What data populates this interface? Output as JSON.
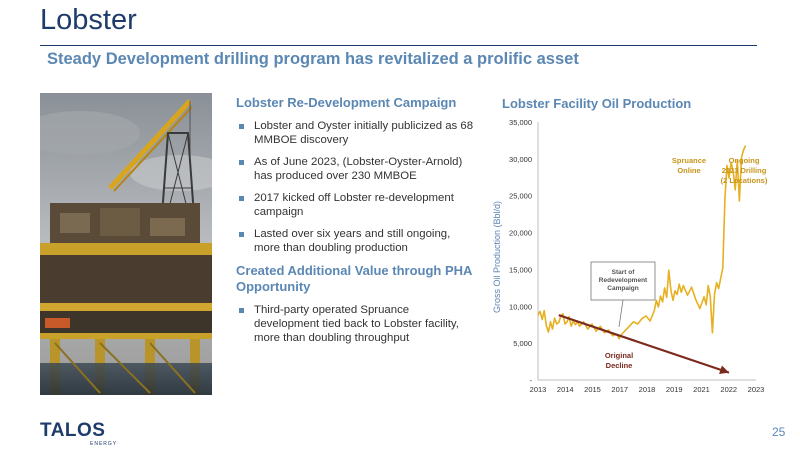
{
  "slide": {
    "title": "Lobster",
    "subtitle": "Steady Development drilling program has revitalized a prolific asset",
    "page_number": "25"
  },
  "left_column": {
    "heading1": "Lobster Re-Development Campaign",
    "bullets1": [
      "Lobster and Oyster initially publicized as 68 MMBOE discovery",
      "As of June 2023, (Lobster-Oyster-Arnold) has produced over 230 MMBOE",
      "2017 kicked off Lobster re-development campaign",
      "Lasted over six years and still ongoing, more than doubling production"
    ],
    "heading2": "Created Additional Value through PHA Opportunity",
    "bullets2": [
      "Third-party operated Spruance development tied back to Lobster facility, more than doubling throughput"
    ]
  },
  "logo": {
    "text": "TALOS",
    "subtext": "ENERGY"
  },
  "chart_title": "Lobster Facility Oil Production",
  "chart_data": {
    "type": "line",
    "ylabel": "Gross Oil Production (Bbl/d)",
    "ylim": [
      0,
      35000
    ],
    "y_ticks": [
      "-",
      "5,000",
      "10,000",
      "15,000",
      "20,000",
      "25,000",
      "30,000",
      "35,000"
    ],
    "x_ticks": [
      "2013",
      "2014",
      "2015",
      "2017",
      "2018",
      "2019",
      "2021",
      "2022",
      "2023"
    ],
    "series": [
      {
        "color": "#e6b020",
        "points": [
          [
            2013.0,
            8800
          ],
          [
            2013.1,
            9300
          ],
          [
            2013.2,
            8200
          ],
          [
            2013.3,
            9400
          ],
          [
            2013.4,
            7400
          ],
          [
            2013.5,
            6500
          ],
          [
            2013.6,
            7900
          ],
          [
            2013.7,
            6900
          ],
          [
            2013.8,
            8400
          ],
          [
            2013.9,
            7600
          ],
          [
            2014.0,
            7800
          ],
          [
            2014.1,
            8700
          ],
          [
            2014.2,
            9000
          ],
          [
            2014.3,
            7600
          ],
          [
            2014.4,
            7900
          ],
          [
            2014.5,
            8600
          ],
          [
            2014.6,
            7300
          ],
          [
            2014.7,
            8000
          ],
          [
            2014.8,
            7500
          ],
          [
            2014.9,
            7900
          ],
          [
            2015.0,
            7300
          ],
          [
            2015.2,
            7900
          ],
          [
            2015.4,
            6900
          ],
          [
            2015.6,
            7600
          ],
          [
            2015.8,
            6600
          ],
          [
            2016.0,
            7300
          ],
          [
            2016.2,
            6400
          ],
          [
            2016.4,
            6800
          ],
          [
            2016.6,
            6000
          ],
          [
            2016.8,
            6200
          ],
          [
            2016.9,
            5600
          ],
          [
            2017.0,
            6100
          ],
          [
            2017.2,
            6700
          ],
          [
            2017.4,
            7300
          ],
          [
            2017.6,
            7900
          ],
          [
            2017.8,
            7600
          ],
          [
            2018.0,
            8300
          ],
          [
            2018.2,
            8700
          ],
          [
            2018.4,
            8000
          ],
          [
            2018.6,
            9400
          ],
          [
            2018.7,
            10800
          ],
          [
            2018.8,
            9900
          ],
          [
            2018.9,
            11400
          ],
          [
            2019.0,
            10600
          ],
          [
            2019.1,
            12500
          ],
          [
            2019.2,
            11200
          ],
          [
            2019.3,
            14900
          ],
          [
            2019.4,
            12200
          ],
          [
            2019.5,
            10800
          ],
          [
            2019.6,
            12100
          ],
          [
            2019.7,
            11600
          ],
          [
            2019.8,
            13000
          ],
          [
            2019.9,
            11900
          ],
          [
            2020.0,
            12800
          ],
          [
            2020.2,
            11500
          ],
          [
            2020.4,
            12600
          ],
          [
            2020.6,
            10900
          ],
          [
            2020.8,
            9700
          ],
          [
            2021.0,
            11300
          ],
          [
            2021.1,
            10200
          ],
          [
            2021.2,
            12800
          ],
          [
            2021.3,
            11300
          ],
          [
            2021.4,
            6400
          ],
          [
            2021.5,
            11600
          ],
          [
            2021.6,
            13200
          ],
          [
            2021.7,
            12400
          ],
          [
            2021.8,
            13800
          ],
          [
            2021.9,
            15200
          ],
          [
            2022.0,
            24500
          ],
          [
            2022.1,
            29100
          ],
          [
            2022.2,
            27400
          ],
          [
            2022.3,
            29500
          ],
          [
            2022.4,
            28300
          ],
          [
            2022.5,
            25800
          ],
          [
            2022.6,
            29800
          ],
          [
            2022.7,
            24300
          ],
          [
            2022.8,
            30200
          ],
          [
            2022.9,
            31200
          ],
          [
            2023.0,
            31800
          ]
        ]
      }
    ],
    "decline_arrow": {
      "from": [
        2014.0,
        8800
      ],
      "to": [
        2022.2,
        1000
      ],
      "color": "#7b2a1e"
    },
    "annotations": [
      {
        "text": "Start of\nRedevelopment\nCampaign",
        "boxed": true
      },
      {
        "text": "Spruance\nOnline"
      },
      {
        "text": "Ongoing\n2023 Drilling\n(2 Locations)"
      },
      {
        "text": "Original\nDecline"
      }
    ]
  }
}
